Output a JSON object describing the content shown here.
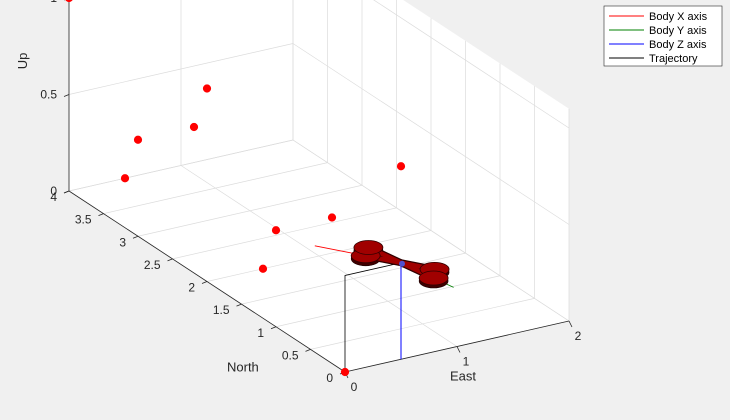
{
  "chart_data": {
    "type": "scatter",
    "title": "",
    "xlabel": "East",
    "ylabel": "North",
    "zlabel": "Up",
    "xlim": [
      0,
      2
    ],
    "ylim": [
      0,
      4
    ],
    "zlim": [
      0,
      1.1
    ],
    "x_ticks": [
      0,
      1,
      2
    ],
    "y_ticks": [
      0,
      0.5,
      1,
      1.5,
      2,
      2.5,
      3,
      3.5,
      4
    ],
    "y_tick_labels": [
      "0",
      "0.5",
      "1",
      "1.5",
      "2",
      "2.5",
      "3",
      "3.5",
      "4"
    ],
    "z_ticks": [
      0,
      0.5,
      1
    ],
    "grid": true,
    "legend_position": "top-right",
    "legend": [
      "Body X axis",
      "Body Y axis",
      "Body Z axis",
      "Trajectory"
    ],
    "colors": {
      "body_x": "#ff0000",
      "body_y": "#008000",
      "body_z": "#0000ff",
      "trajectory": "#000000",
      "waypoint": "#ff0000",
      "drone": "#a00000"
    },
    "waypoints": [
      {
        "x": 0,
        "y": 0,
        "z": 0
      },
      {
        "x": 0,
        "y": 1,
        "z": 0.5
      },
      {
        "x": 0,
        "y": 2,
        "z": 1
      },
      {
        "x": 0,
        "y": 3,
        "z": 0.5
      },
      {
        "x": 0,
        "y": 4,
        "z": 1
      },
      {
        "x": 0.5,
        "y": 0,
        "z": 1
      },
      {
        "x": 0.5,
        "y": 1,
        "z": 0.5
      },
      {
        "x": 0.5,
        "y": 2,
        "z": 0
      },
      {
        "x": 0.5,
        "y": 3,
        "z": 0.5
      },
      {
        "x": 0.5,
        "y": 4,
        "z": 0
      }
    ],
    "trajectory": [
      {
        "x": 0,
        "y": 0,
        "z": 0
      },
      {
        "x": 0,
        "y": 0,
        "z": 0.5
      },
      {
        "x": 0.5,
        "y": 0,
        "z": 0.5
      }
    ],
    "drone": {
      "position": {
        "x": 0.5,
        "y": 0,
        "z": 0.5
      },
      "body_x_end": {
        "x": 0.1,
        "y": 0.6,
        "z": 0.5
      },
      "body_y_end": {
        "x": 0.6,
        "y": -0.6,
        "z": 0.5
      },
      "body_z_end": {
        "x": 0.5,
        "y": 0,
        "z": 0
      }
    }
  }
}
